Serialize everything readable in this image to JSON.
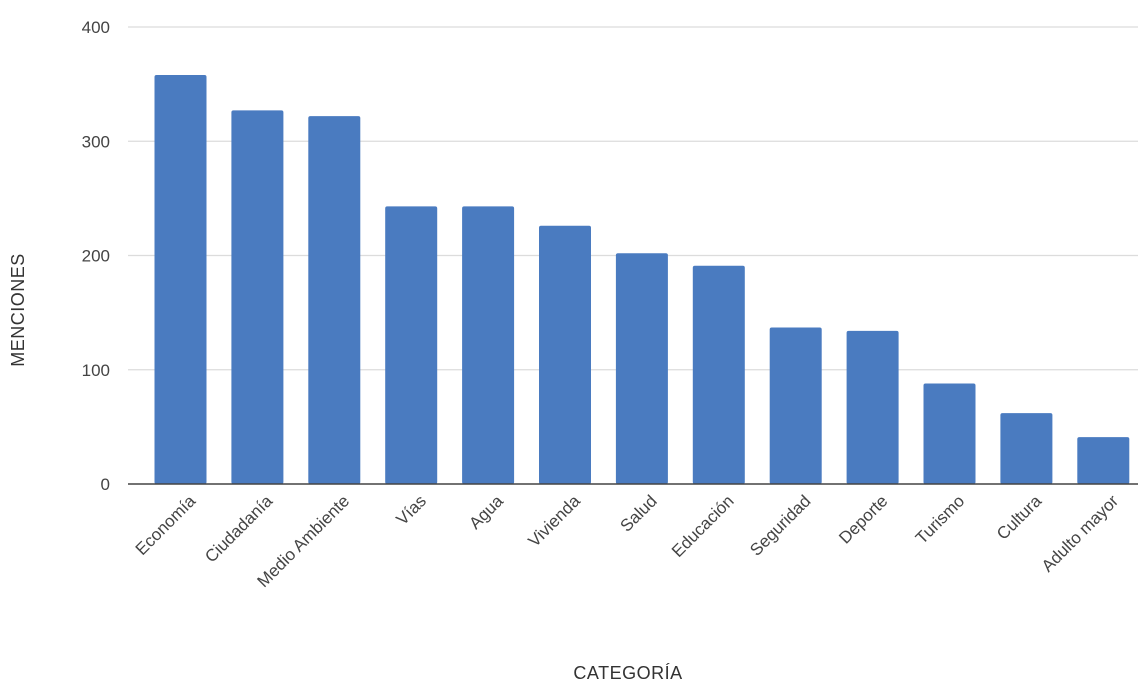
{
  "chart_data": {
    "type": "bar",
    "title": "",
    "xlabel": "CATEGORÍA",
    "ylabel": "MENCIONES",
    "categories": [
      "Economía",
      "Ciudadanía",
      "Medio Ambiente",
      "Vías",
      "Agua",
      "Vivienda",
      "Salud",
      "Educación",
      "Seguridad",
      "Deporte",
      "Turismo",
      "Cultura",
      "Adulto mayor"
    ],
    "values": [
      358,
      327,
      322,
      243,
      243,
      226,
      202,
      191,
      137,
      134,
      88,
      62,
      41
    ],
    "ylim": [
      0,
      400
    ],
    "yticks": [
      0,
      100,
      200,
      300,
      400
    ],
    "grid": true,
    "legend": "none",
    "bar_color": "#4a7bc0"
  }
}
